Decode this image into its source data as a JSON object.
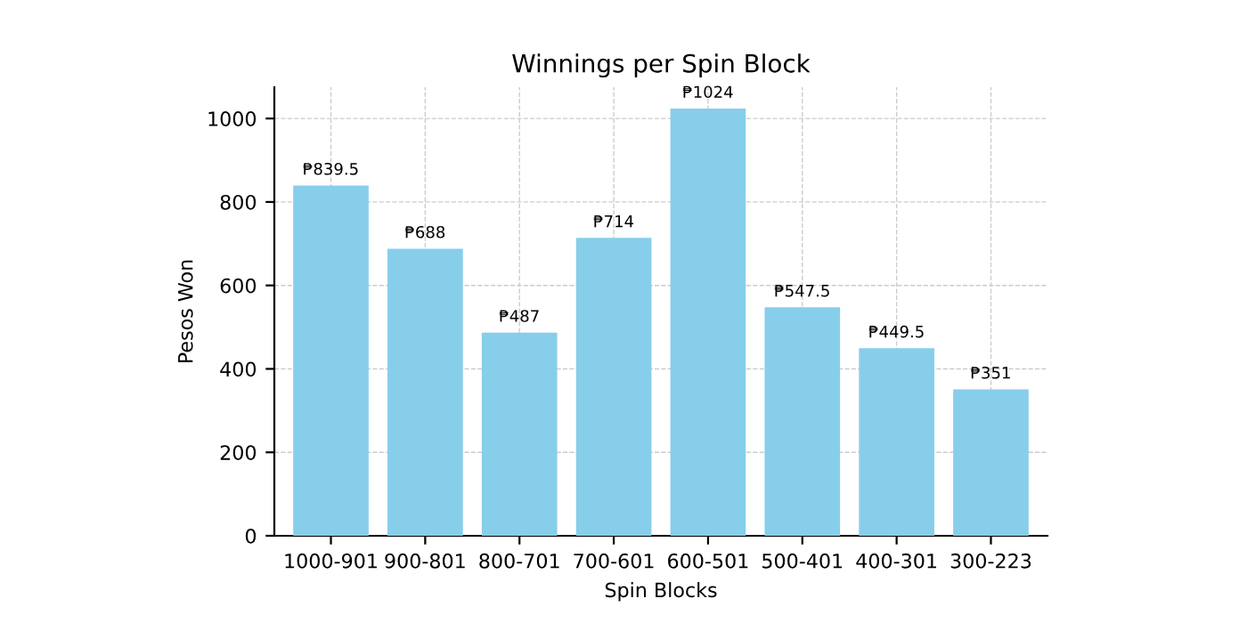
{
  "chart_data": {
    "type": "bar",
    "title": "Winnings per Spin Block",
    "xlabel": "Spin Blocks",
    "ylabel": "Pesos Won",
    "categories": [
      "1000-901",
      "900-801",
      "800-701",
      "700-601",
      "600-501",
      "500-401",
      "400-301",
      "300-223"
    ],
    "values": [
      839.5,
      688,
      487,
      714,
      1024,
      547.5,
      449.5,
      351
    ],
    "value_labels": [
      "₱839.5",
      "₱688",
      "₱487",
      "₱714",
      "₱1024",
      "₱547.5",
      "₱449.5",
      "₱351"
    ],
    "color": "#87ceeb",
    "ylim": [
      0,
      1075
    ],
    "yticks": [
      0,
      200,
      400,
      600,
      800,
      1000
    ],
    "grid": true
  }
}
